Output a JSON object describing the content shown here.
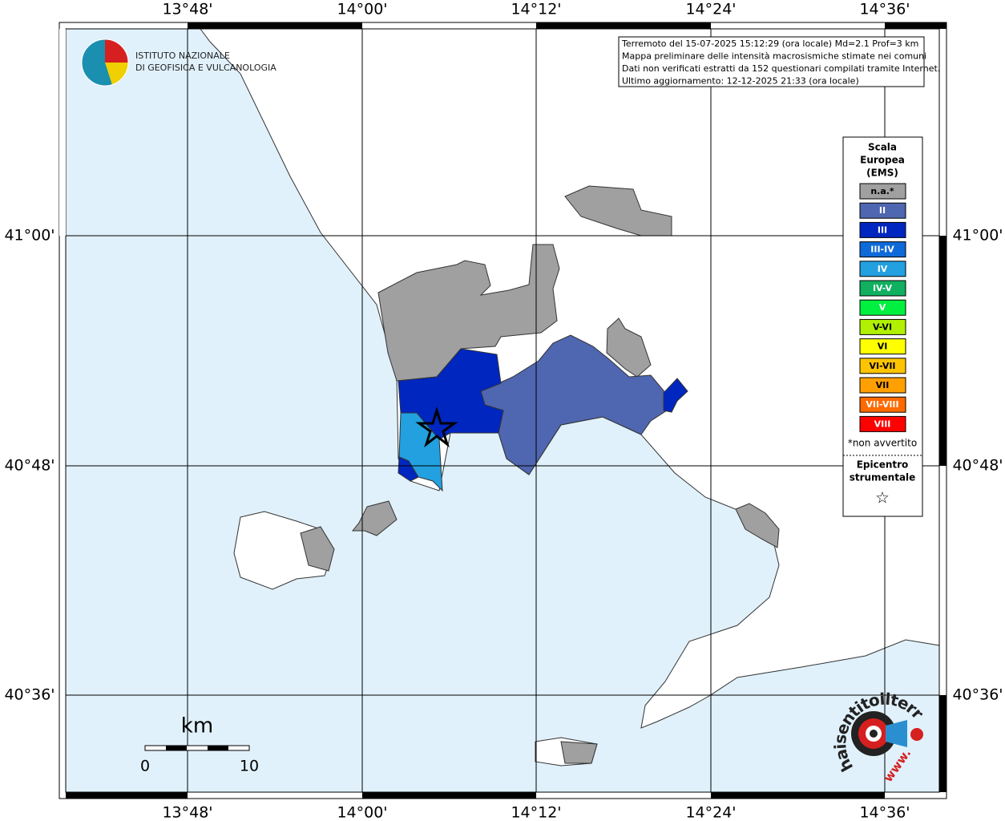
{
  "logo": {
    "line1": "ISTITUTO NAZIONALE",
    "line2": "DI GEOFISICA E VULCANOLOGIA"
  },
  "info": [
    "Terremoto del 15-07-2025 15:12:29 (ora locale) Md=2.1 Prof=3 km",
    "Mappa preliminare delle intensità macrosismiche stimate nei comuni",
    "Dati non verificati estratti da 152 questionari compilati tramite Internet.",
    "Ultimo aggiornamento: 12-12-2025 21:33 (ora locale)"
  ],
  "longitude_labels": [
    "13°48'",
    "14°00'",
    "14°12'",
    "14°24'",
    "14°36'"
  ],
  "latitude_labels": [
    "41°00'",
    "40°48'",
    "40°36'"
  ],
  "legend": {
    "title": [
      "Scala",
      "Europea",
      "(EMS)"
    ],
    "items": [
      {
        "label": "n.a.*",
        "color": "#a0a0a0"
      },
      {
        "label": "II",
        "color": "#4f66b0"
      },
      {
        "label": "III",
        "color": "#0026c0"
      },
      {
        "label": "III-IV",
        "color": "#0d6ad8"
      },
      {
        "label": "IV",
        "color": "#22a0e0"
      },
      {
        "label": "IV-V",
        "color": "#10b060"
      },
      {
        "label": "V",
        "color": "#00f040"
      },
      {
        "label": "V-VI",
        "color": "#b0f000"
      },
      {
        "label": "VI",
        "color": "#ffff00"
      },
      {
        "label": "VI-VII",
        "color": "#ffc400"
      },
      {
        "label": "VII",
        "color": "#ffa000"
      },
      {
        "label": "VII-VIII",
        "color": "#ff6a00"
      },
      {
        "label": "VIII",
        "color": "#ff0000"
      }
    ],
    "note": "*non avvertito",
    "epicenter": [
      "Epicentro",
      "strumentale"
    ],
    "epicenter_symbol": "☆"
  },
  "scale": {
    "unit": "km",
    "start": 0,
    "end": 10
  },
  "site_logo": {
    "text": "haisentitoilterremoto.it",
    "prefix": "www."
  }
}
